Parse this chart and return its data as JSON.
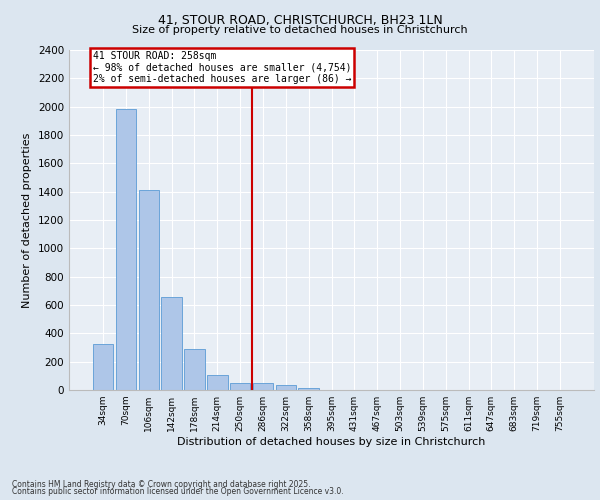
{
  "title1": "41, STOUR ROAD, CHRISTCHURCH, BH23 1LN",
  "title2": "Size of property relative to detached houses in Christchurch",
  "xlabel": "Distribution of detached houses by size in Christchurch",
  "ylabel": "Number of detached properties",
  "bar_labels": [
    "34sqm",
    "70sqm",
    "106sqm",
    "142sqm",
    "178sqm",
    "214sqm",
    "250sqm",
    "286sqm",
    "322sqm",
    "358sqm",
    "395sqm",
    "431sqm",
    "467sqm",
    "503sqm",
    "539sqm",
    "575sqm",
    "611sqm",
    "647sqm",
    "683sqm",
    "719sqm",
    "755sqm"
  ],
  "bar_values": [
    325,
    1985,
    1415,
    655,
    290,
    108,
    50,
    50,
    35,
    12,
    0,
    0,
    0,
    0,
    0,
    0,
    0,
    0,
    0,
    0,
    0
  ],
  "bar_color": "#aec6e8",
  "bar_edgecolor": "#5b9bd5",
  "highlight_index": 6,
  "vline_x": 6.5,
  "annotation_title": "41 STOUR ROAD: 258sqm",
  "annotation_line1": "← 98% of detached houses are smaller (4,754)",
  "annotation_line2": "2% of semi-detached houses are larger (86) →",
  "vline_color": "#cc0000",
  "annotation_box_edgecolor": "#cc0000",
  "ylim": [
    0,
    2400
  ],
  "yticks": [
    0,
    200,
    400,
    600,
    800,
    1000,
    1200,
    1400,
    1600,
    1800,
    2000,
    2200,
    2400
  ],
  "footer1": "Contains HM Land Registry data © Crown copyright and database right 2025.",
  "footer2": "Contains public sector information licensed under the Open Government Licence v3.0.",
  "bg_color": "#dce6f0",
  "plot_bg_color": "#e8eef5"
}
